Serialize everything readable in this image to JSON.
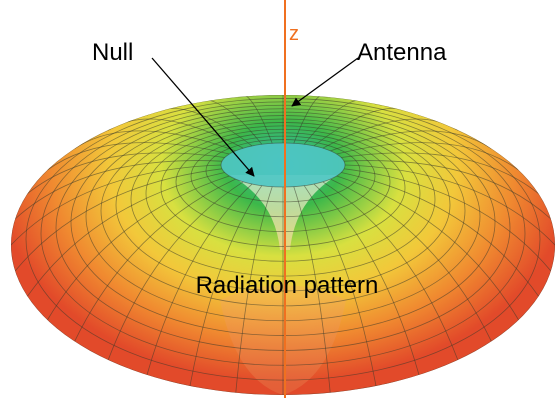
{
  "axis_label": "z",
  "labels": {
    "null": "Null",
    "antenna": "Antenna",
    "pattern": "Radiation pattern"
  }
}
